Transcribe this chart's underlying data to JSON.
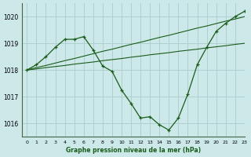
{
  "background_color": "#cce8e8",
  "grid_color": "#aacccc",
  "line_color": "#1a5c1a",
  "title": "Graphe pression niveau de la mer (hPa)",
  "xlim": [
    -0.5,
    23
  ],
  "ylim": [
    1015.5,
    1020.5
  ],
  "yticks": [
    1016,
    1017,
    1018,
    1019,
    1020
  ],
  "xtick_labels": [
    "0",
    "1",
    "2",
    "3",
    "4",
    "5",
    "6",
    "7",
    "8",
    "9",
    "10",
    "11",
    "12",
    "13",
    "14",
    "15",
    "16",
    "17",
    "18",
    "19",
    "20",
    "21",
    "22",
    "23"
  ],
  "series_marker": [
    1018.0,
    1018.2,
    1018.5,
    1018.85,
    1019.15,
    1019.15,
    1019.25,
    1018.75,
    1018.15,
    1017.95,
    1017.25,
    1016.75,
    1016.2,
    1016.25,
    1015.95,
    1015.75,
    1016.2,
    1017.1,
    1018.2,
    1018.85,
    1019.45,
    1019.75,
    1020.0,
    1020.2
  ],
  "series_upper": [
    1018.0,
    1018.09,
    1018.17,
    1018.26,
    1018.35,
    1018.43,
    1018.52,
    1018.61,
    1018.7,
    1018.78,
    1018.87,
    1018.96,
    1019.04,
    1019.13,
    1019.22,
    1019.3,
    1019.39,
    1019.48,
    1019.57,
    1019.65,
    1019.74,
    1019.83,
    1019.91,
    1020.0
  ],
  "series_lower": [
    1018.0,
    1018.04,
    1018.09,
    1018.13,
    1018.17,
    1018.22,
    1018.26,
    1018.3,
    1018.35,
    1018.39,
    1018.43,
    1018.48,
    1018.52,
    1018.57,
    1018.61,
    1018.65,
    1018.7,
    1018.74,
    1018.78,
    1018.83,
    1018.87,
    1018.91,
    1018.96,
    1019.0
  ]
}
